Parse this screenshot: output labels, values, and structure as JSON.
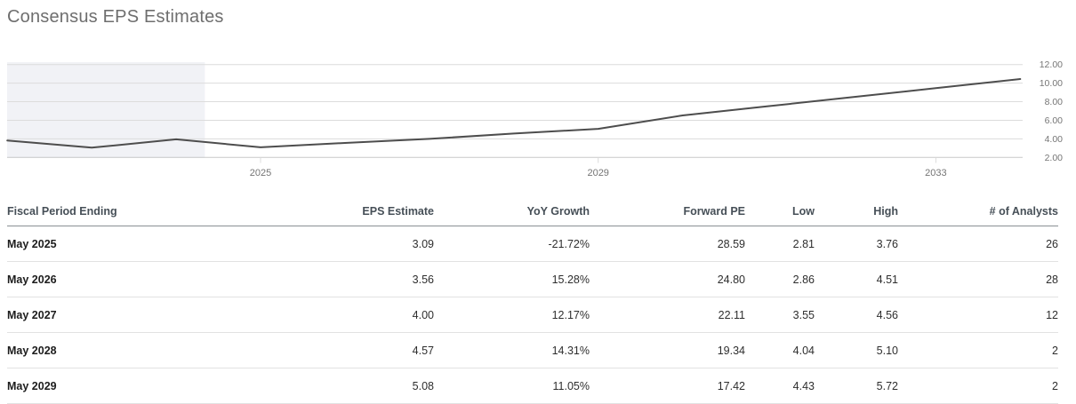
{
  "title": "Consensus EPS Estimates",
  "chart_data": {
    "type": "line",
    "title": "Consensus EPS Estimates",
    "xlabel": "",
    "ylabel": "",
    "x": [
      2022,
      2023,
      2024,
      2025,
      2026,
      2027,
      2028,
      2029,
      2030,
      2031,
      2032,
      2033,
      2034
    ],
    "series": [
      {
        "name": "EPS",
        "values": [
          3.82,
          3.05,
          3.95,
          3.09,
          3.56,
          4.0,
          4.57,
          5.08,
          6.52,
          7.5,
          8.48,
          9.46,
          10.44
        ]
      }
    ],
    "x_ticks": [
      "2025",
      "2029",
      "2033"
    ],
    "y_ticks": [
      "12.00",
      "10.00",
      "8.00",
      "6.00",
      "4.00",
      "2.00"
    ],
    "ylim": [
      2,
      12
    ],
    "xlim": [
      2022,
      2034.03
    ],
    "grid": "horizontal",
    "legend": "none",
    "history_band": {
      "x_start": 2022,
      "x_end": 2024.34
    },
    "colors": {
      "line": "#4d4d4d",
      "band": "#f1f2f6",
      "grid": "#dcdcdc",
      "axis": "#c9c9c9",
      "tick_label": "#757575"
    }
  },
  "table": {
    "headers": [
      "Fiscal Period Ending",
      "EPS Estimate",
      "YoY Growth",
      "Forward PE",
      "Low",
      "High",
      "# of Analysts"
    ],
    "rows": [
      [
        "May 2025",
        "3.09",
        "-21.72%",
        "28.59",
        "2.81",
        "3.76",
        "26"
      ],
      [
        "May 2026",
        "3.56",
        "15.28%",
        "24.80",
        "2.86",
        "4.51",
        "28"
      ],
      [
        "May 2027",
        "4.00",
        "12.17%",
        "22.11",
        "3.55",
        "4.56",
        "12"
      ],
      [
        "May 2028",
        "4.57",
        "14.31%",
        "19.34",
        "4.04",
        "5.10",
        "2"
      ],
      [
        "May 2029",
        "5.08",
        "11.05%",
        "17.42",
        "4.43",
        "5.72",
        "2"
      ]
    ]
  }
}
